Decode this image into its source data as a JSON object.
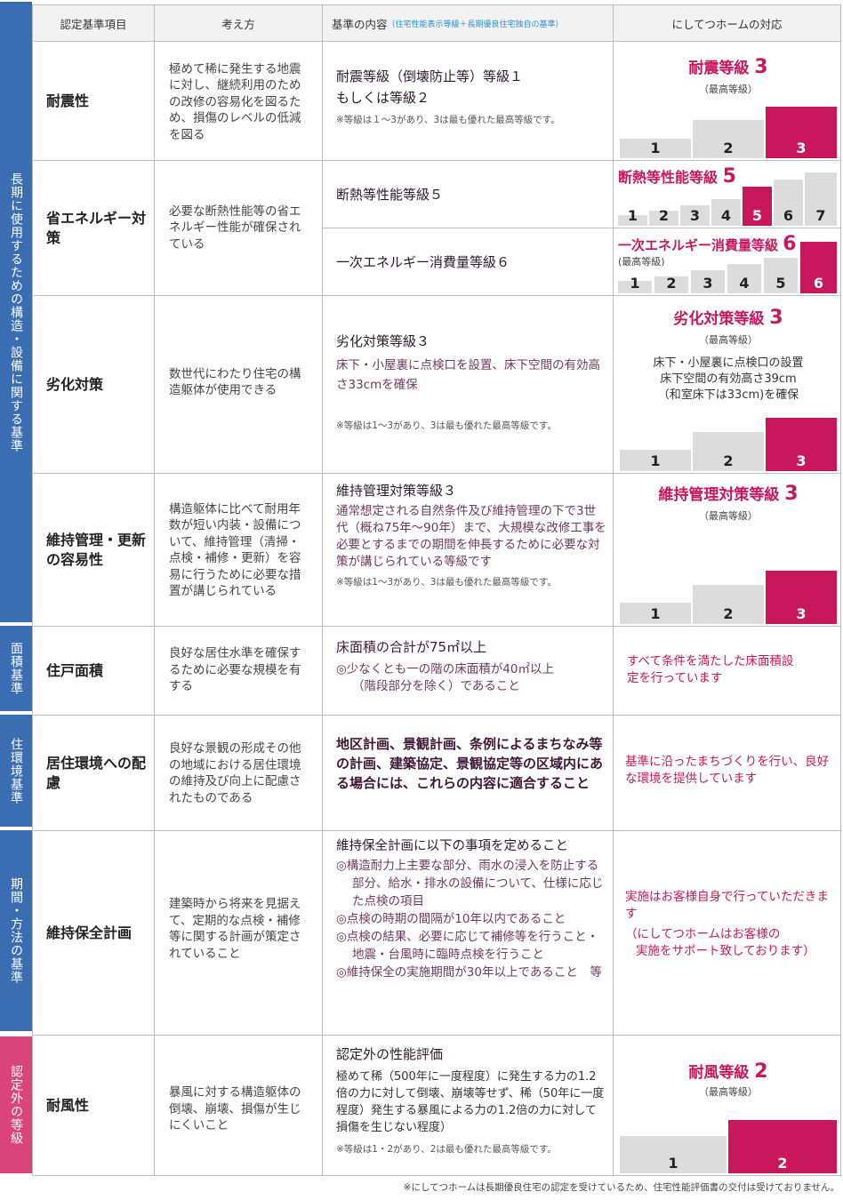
{
  "colors": {
    "blue_band": "#3b6db3",
    "pink_band": "#d9457b",
    "accent": "#c8175d",
    "bar_gray": "#dcdcdc"
  },
  "bands": {
    "long_term": "長期に使用するための構造・設備に関する基準",
    "area": "面積基準",
    "living_env": "住環境基準",
    "period": "期間・方法の基準",
    "other": "認定外の等級"
  },
  "header": {
    "item": "認定基準項目",
    "concept": "考え方",
    "criteria": "基準の内容",
    "criteria_note": "（住宅性能表示等級＋長期優良住宅独自の基準）",
    "response": "にしてつホームの対応"
  },
  "rows": {
    "seismic": {
      "item": "耐震性",
      "concept": "極めて稀に発生する地震に対し、継続利用のための改修の容易化を図るため、損傷のレベルの低減を図る",
      "crit_line1": "耐震等級（倒壊防止等）等級１",
      "crit_line2": "もしくは等級２",
      "crit_note": "※等級は１～3があり、3は最も優れた最高等級です。",
      "resp_title": "耐震等級",
      "resp_grade": "3",
      "resp_sub": "（最高等級）",
      "bars": [
        "1",
        "2",
        "3"
      ]
    },
    "energy": {
      "item": "省エネルギー対策",
      "concept": "必要な断熱性能等の省エネルギー性能が確保されている",
      "crit_a": "断熱等性能等級５",
      "crit_b": "一次エネルギー消費量等級６",
      "resp_a_title": "断熱等性能等級",
      "resp_a_grade": "5",
      "bars_a": [
        "1",
        "2",
        "3",
        "4",
        "5",
        "6",
        "7"
      ],
      "resp_b_title": "一次エネルギー消費量等級",
      "resp_b_grade": "6",
      "resp_b_sub": "(最高等級)",
      "bars_b": [
        "1",
        "2",
        "3",
        "4",
        "5",
        "6"
      ]
    },
    "deterioration": {
      "item": "劣化対策",
      "concept": "数世代にわたり住宅の構造躯体が使用できる",
      "crit_title": "劣化対策等級３",
      "crit_body": "床下・小屋裏に点検口を設置、床下空間の有効高さ33cmを確保",
      "crit_note": "※等級は1～3があり、3は最も優れた最高等級です。",
      "resp_title": "劣化対策等級",
      "resp_grade": "3",
      "resp_sub": "（最高等級）",
      "resp_desc1": "床下・小屋裏に点検口の設置",
      "resp_desc2": "床下空間の有効高さ39cm",
      "resp_desc3": "（和室床下は33cm)を確保",
      "bars": [
        "1",
        "2",
        "3"
      ]
    },
    "maintenance": {
      "item": "維持管理・更新の容易性",
      "concept": "構造躯体に比べて耐用年数が短い内装・設備について、維持管理（清掃・点検・補修・更新）を容易に行うために必要な措置が講じられている",
      "crit_title": "維持管理対策等級３",
      "crit_body": "通常想定される自然条件及び維持管理の下で3世代（概ね75年～90年）まで、大規模な改修工事を必要とするまでの期間を伸長するために必要な対策が講じられている等級です",
      "crit_note": "※等級は1～3があり、3は最も優れた最高等級です。",
      "resp_title": "維持管理対策等級",
      "resp_grade": "3",
      "resp_sub": "（最高等級）",
      "bars": [
        "1",
        "2",
        "3"
      ]
    },
    "floor_area": {
      "item": "住戸面積",
      "concept": "良好な居住水準を確保するために必要な規模を有する",
      "crit_title": "床面積の合計が75㎡以上",
      "crit_body1": "◎少なくとも一の階の床面積が40㎡以上",
      "crit_body2": "（階段部分を除く）であること",
      "resp": "すべて条件を満たした床面積設定を行っています"
    },
    "environment": {
      "item": "居住環境への配慮",
      "concept": "良好な景観の形成その他の地域における居住環境の維持及び向上に配慮されたものである",
      "crit": "地区計画、景観計画、条例によるまちなみ等の計画、建築協定、景観協定等の区域内にある場合には、これらの内容に適合すること",
      "resp": "基準に沿ったまちづくりを行い、良好な環境を提供しています"
    },
    "plan": {
      "item": "維持保全計画",
      "concept": "建築時から将来を見据えて、定期的な点検・補修等に関する計画が策定されていること",
      "crit_title": "維持保全計画に以下の事項を定めること",
      "crit_items": [
        "◎構造耐力上主要な部分、雨水の浸入を防止する部分、給水・排水の設備について、仕様に応じた点検の項目",
        "◎点検の時期の間隔が10年以内であること",
        "◎点検の結果、必要に応じて補修等を行うこと・地震・台風時に臨時点検を行うこと",
        "◎維持保全の実施期間が30年以上であること　等"
      ],
      "resp1": "実施はお客様自身で行っていただきます",
      "resp2": "（にしてつホームはお客様の",
      "resp3": "実施をサポート致しております）"
    },
    "wind": {
      "item": "耐風性",
      "concept": "暴風に対する構造躯体の倒壊、崩壊、損傷が生じにくいこと",
      "crit_title": "認定外の性能評価",
      "crit_body": "極めて稀（500年に一度程度）に発生する力の1.2倍の力に対して倒壊、崩壊等せず、稀（50年に一度程度）発生する暴風による力の1.2倍の力に対して損傷を生じない程度）",
      "crit_note": "※等級は1・2があり、2は最も優れた最高等級です。",
      "resp_title": "耐風等級",
      "resp_grade": "2",
      "resp_sub": "（最高等級）",
      "bars": [
        "1",
        "2"
      ]
    }
  },
  "footnote": "※にしてつホームは長期優良住宅の認定を受けているため、住宅性能評価書の交付は受けておりません。"
}
